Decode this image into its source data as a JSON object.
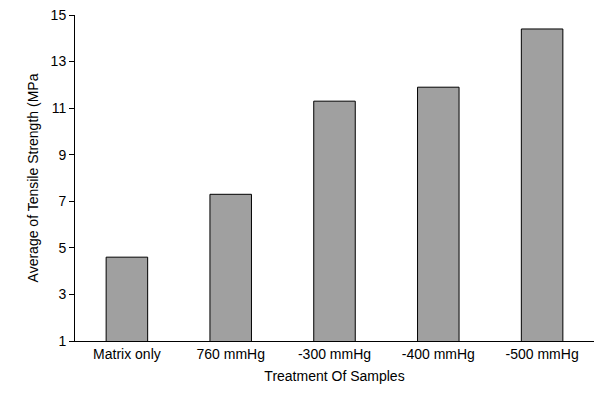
{
  "chart_data": {
    "type": "bar",
    "x_label": "Treatment Of Samples",
    "y_label": "Average of Tensile Strength (MPa",
    "categories": [
      "Matrix only",
      "760 mmHg",
      "-300 mmHg",
      "-400 mmHg",
      "-500 mmHg"
    ],
    "values": [
      4.6,
      7.3,
      11.3,
      11.9,
      14.4
    ],
    "color": "#a0a0a0",
    "ylim": [
      1,
      15
    ],
    "yticks": [
      1,
      3,
      5,
      7,
      9,
      11,
      13,
      15
    ],
    "grid": false
  }
}
